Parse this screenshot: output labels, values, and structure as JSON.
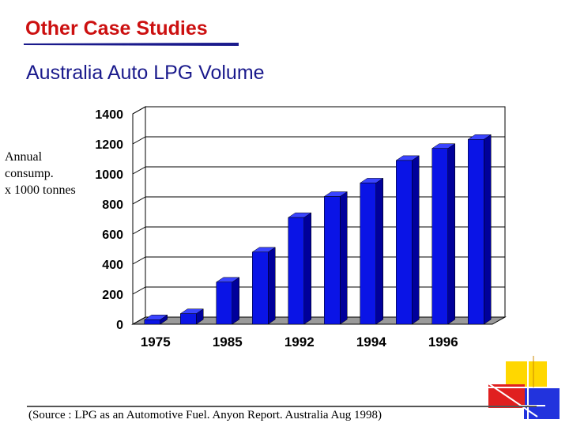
{
  "slide": {
    "title": "Other Case Studies",
    "subtitle": "Australia Auto LPG Volume",
    "source": "(Source : LPG as an Automotive Fuel. Anyon Report. Australia Aug 1998)"
  },
  "colors": {
    "title": "#cc1010",
    "subtitle": "#1a1a8c",
    "bar": "#0a14e6",
    "deco_yellow": "#ffd700",
    "deco_red": "#e02020",
    "deco_blue": "#2233dd"
  },
  "chart_data": {
    "type": "bar",
    "ylabel": "Annual\nconsump.\nx 1000 tonnes",
    "xlabel": "",
    "title": "",
    "bar_count": 10,
    "x_tick_labels": [
      "1975",
      "1985",
      "1992",
      "1994",
      "1996"
    ],
    "label_every": 2,
    "values": [
      30,
      70,
      280,
      480,
      710,
      850,
      940,
      1090,
      1170,
      1230
    ],
    "yticks": [
      0,
      200,
      400,
      600,
      800,
      1000,
      1200,
      1400
    ],
    "ylim": [
      0,
      1400
    ],
    "grid": true,
    "style": "3d"
  }
}
